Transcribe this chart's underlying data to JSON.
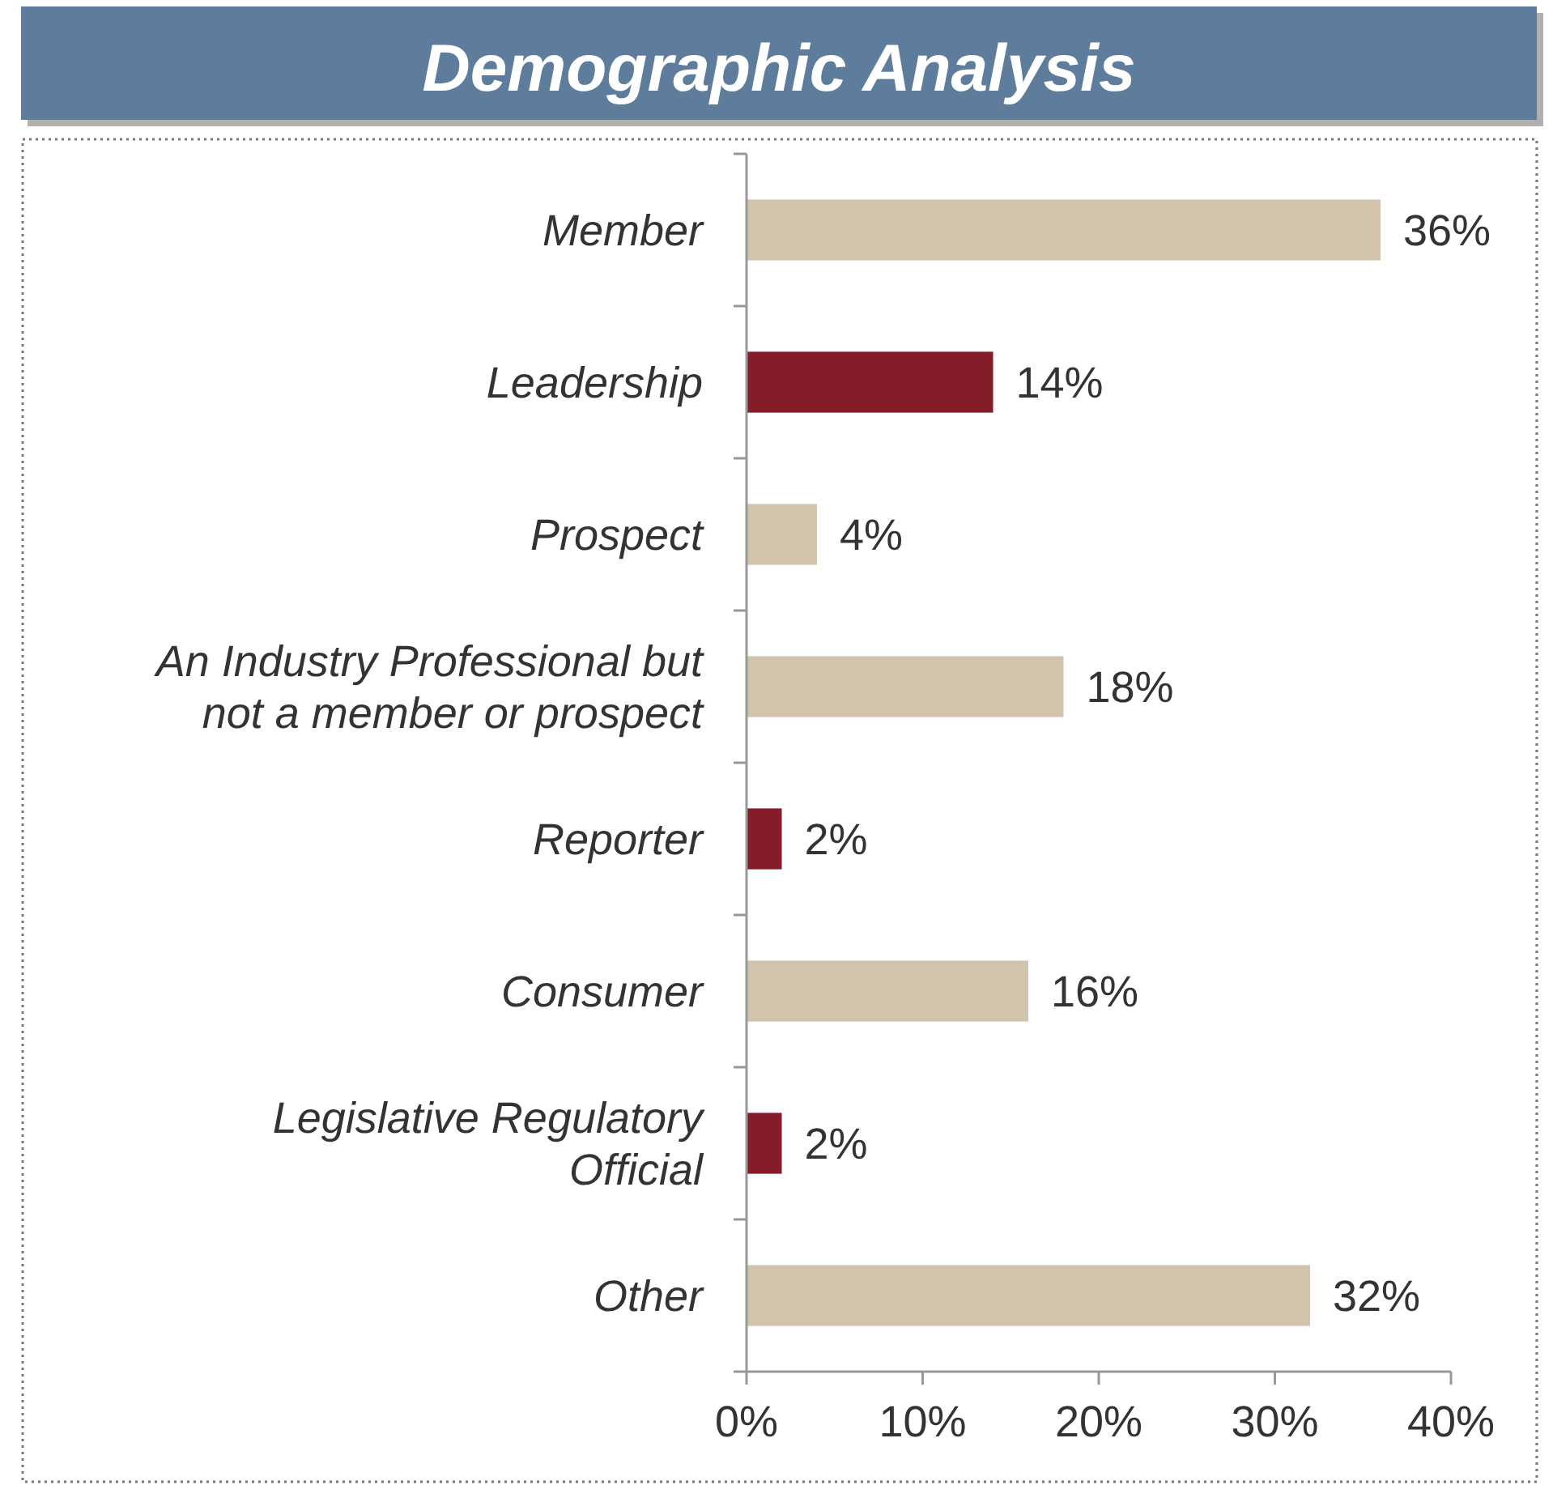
{
  "chart_data": {
    "type": "bar",
    "title": "Demographic Analysis",
    "orientation": "horizontal",
    "categories": [
      "Member",
      "Leadership",
      "Prospect",
      "An Industry Professional but not a member or prospect",
      "Reporter",
      "Consumer",
      "Legislative Regulatory Official",
      "Other"
    ],
    "values": [
      36,
      14,
      4,
      18,
      2,
      16,
      2,
      32
    ],
    "colors": [
      "#d1c3ac",
      "#841c2a",
      "#d1c3ac",
      "#d1c3ac",
      "#841c2a",
      "#d1c3ac",
      "#841c2a",
      "#d1c3ac"
    ],
    "value_labels": [
      "36%",
      "14%",
      "4%",
      "18%",
      "2%",
      "16%",
      "2%",
      "32%"
    ],
    "xlim": [
      0,
      40
    ],
    "xticks": [
      {
        "value": 0,
        "label": "0%"
      },
      {
        "value": 10,
        "label": "10%"
      },
      {
        "value": 20,
        "label": "20%"
      },
      {
        "value": 30,
        "label": "30%"
      },
      {
        "value": 40,
        "label": "40%"
      }
    ],
    "grid": false
  }
}
